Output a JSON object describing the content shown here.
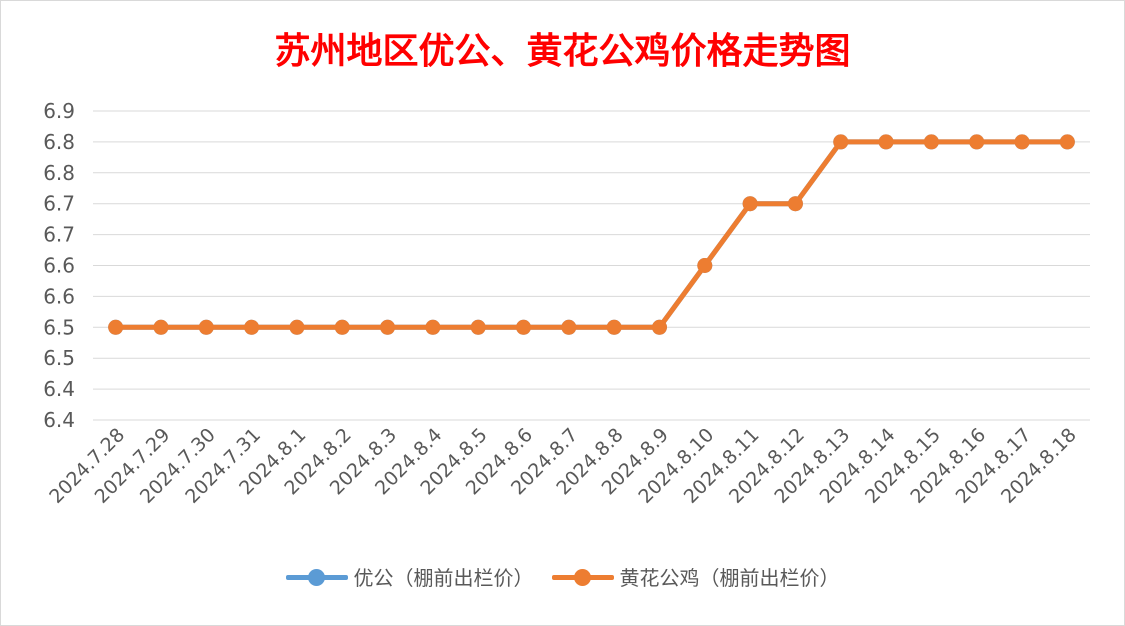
{
  "chart_data": {
    "type": "line",
    "title": "苏州地区优公、黄花公鸡价格走势图",
    "xlabel": "",
    "ylabel": "",
    "categories": [
      "2024.7.28",
      "2024.7.29",
      "2024.7.30",
      "2024.7.31",
      "2024.8.1",
      "2024.8.2",
      "2024.8.3",
      "2024.8.4",
      "2024.8.5",
      "2024.8.6",
      "2024.8.7",
      "2024.8.8",
      "2024.8.9",
      "2024.8.10",
      "2024.8.11",
      "2024.8.12",
      "2024.8.13",
      "2024.8.14",
      "2024.8.15",
      "2024.8.16",
      "2024.8.17",
      "2024.8.18"
    ],
    "y_tick_labels": [
      "6.4",
      "6.4",
      "6.5",
      "6.5",
      "6.6",
      "6.6",
      "6.7",
      "6.7",
      "6.8",
      "6.8",
      "6.9"
    ],
    "ylim": [
      6.35,
      6.85
    ],
    "grid": true,
    "legend_position": "bottom",
    "series": [
      {
        "name": "优公（棚前出栏价）",
        "color": "#5b9bd5",
        "values": [
          6.5,
          6.5,
          6.5,
          6.5,
          6.5,
          6.5,
          6.5,
          6.5,
          6.5,
          6.5,
          6.5,
          6.5,
          6.5,
          6.6,
          6.7,
          6.7,
          6.8,
          6.8,
          6.8,
          6.8,
          6.8,
          6.8
        ]
      },
      {
        "name": "黄花公鸡（棚前出栏价）",
        "color": "#ed7d31",
        "values": [
          6.5,
          6.5,
          6.5,
          6.5,
          6.5,
          6.5,
          6.5,
          6.5,
          6.5,
          6.5,
          6.5,
          6.5,
          6.5,
          6.6,
          6.7,
          6.7,
          6.8,
          6.8,
          6.8,
          6.8,
          6.8,
          6.8
        ]
      }
    ]
  }
}
